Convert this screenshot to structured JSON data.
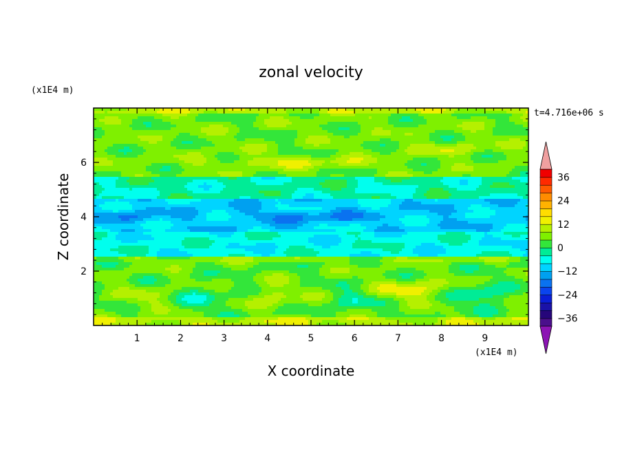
{
  "chart_data": {
    "type": "heatmap",
    "title": "zonal velocity",
    "xlabel": "X coordinate",
    "ylabel": "Z coordinate",
    "x_units": "(x1E4 m)",
    "y_units": "(x1E4 m)",
    "time_label": "t=4.716e+06 s",
    "xlim": [
      0,
      10
    ],
    "ylim": [
      0,
      8
    ],
    "x_ticks": [
      1,
      2,
      3,
      4,
      5,
      6,
      7,
      8,
      9
    ],
    "y_ticks": [
      2,
      4,
      6
    ],
    "colorbar": {
      "levels": [
        -40,
        -36,
        -32,
        -28,
        -24,
        -20,
        -16,
        -12,
        -8,
        -4,
        0,
        4,
        8,
        12,
        16,
        20,
        24,
        28,
        32,
        36,
        40
      ],
      "labels": [
        "-36",
        "-24",
        "-12",
        "0",
        "12",
        "24",
        "36"
      ],
      "label_values": [
        -36,
        -24,
        -12,
        0,
        12,
        24,
        36
      ],
      "colors": [
        "#4b0f8c",
        "#26067a",
        "#1a12a8",
        "#0a1ed6",
        "#0a44ee",
        "#0a72f0",
        "#00a0f0",
        "#00d4ff",
        "#00ffee",
        "#00ec96",
        "#33e63a",
        "#7ff000",
        "#b5f000",
        "#f0f000",
        "#ffdd00",
        "#ffb200",
        "#ff8c00",
        "#ff5a00",
        "#ff2a00",
        "#f00000"
      ],
      "under_color": "#8c14b4",
      "over_color": "#f0a0a0"
    },
    "field_description_values": {
      "bands": [
        {
          "z": [
            0.0,
            0.35
          ],
          "u_mean": 10
        },
        {
          "z": [
            0.35,
            2.3
          ],
          "u_mean": 4
        },
        {
          "z": [
            2.3,
            2.5
          ],
          "u_mean": 6
        },
        {
          "z": [
            2.5,
            3.4
          ],
          "u_mean": -6
        },
        {
          "z": [
            3.4,
            4.7
          ],
          "u_mean": -10
        },
        {
          "z": [
            4.7,
            5.5
          ],
          "u_mean": -3
        },
        {
          "z": [
            5.5,
            7.8
          ],
          "u_mean": 5
        },
        {
          "z": [
            7.8,
            8.0
          ],
          "u_mean": 10
        }
      ]
    }
  }
}
